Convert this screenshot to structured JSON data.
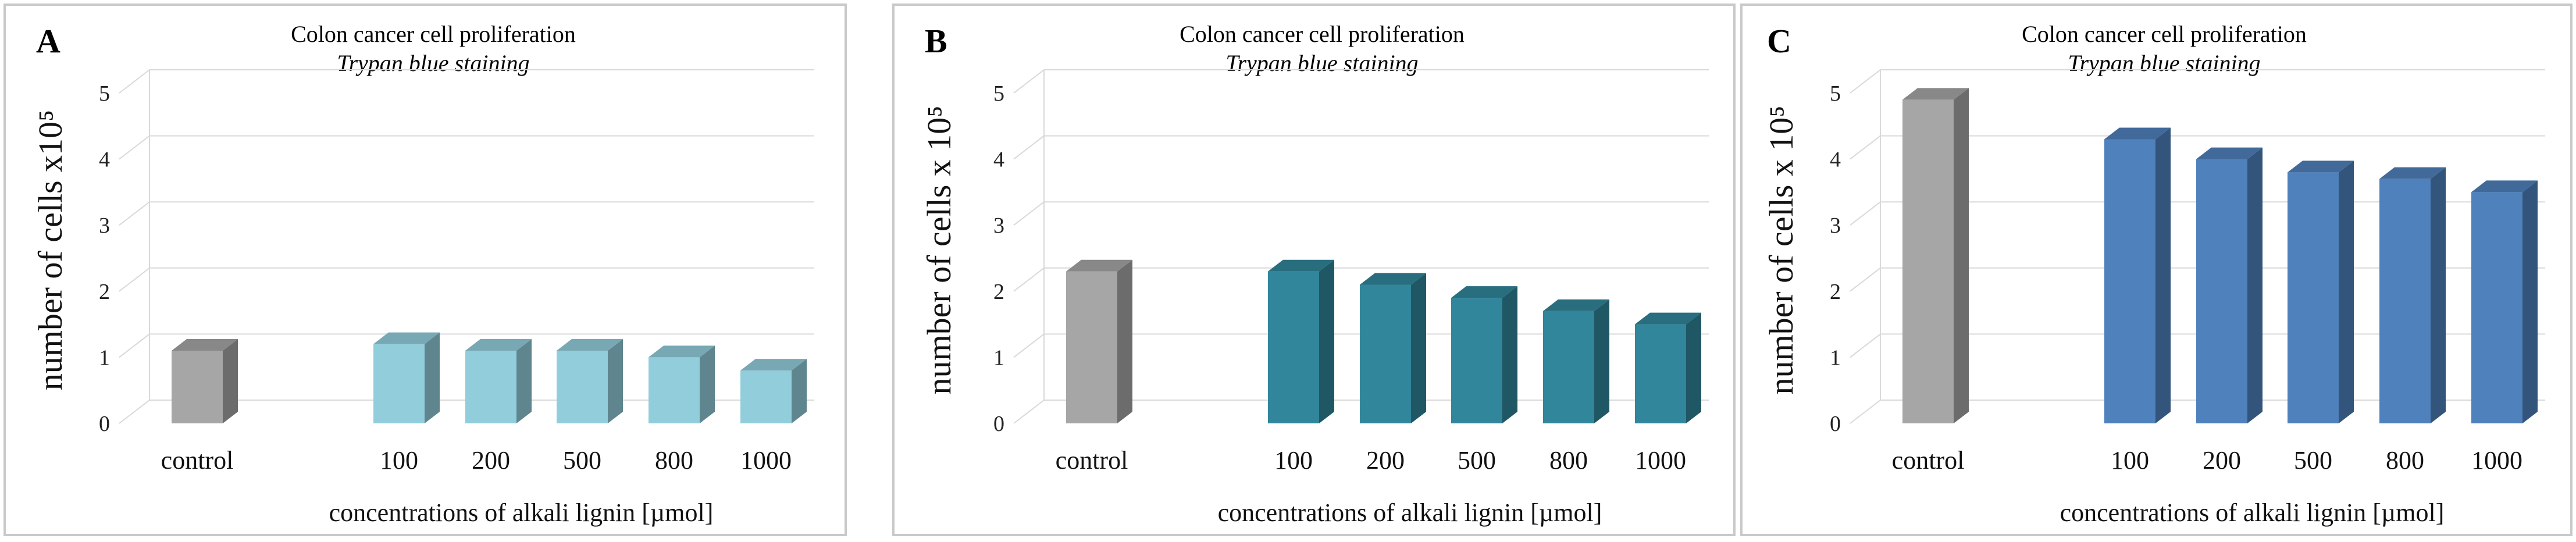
{
  "chart_data": [
    {
      "type": "bar",
      "panel_label": "A",
      "title": "Colon cancer cell proliferation",
      "subtitle": "Trypan blue staining",
      "ylabel": "number of cells x10⁵",
      "xlabel": "concentrations of alkali lignin [µmol]",
      "categories": [
        "control",
        "100",
        "200",
        "500",
        "800",
        "1000"
      ],
      "values": [
        1.1,
        1.2,
        1.1,
        1.1,
        1.0,
        0.8
      ],
      "ylim": [
        0,
        5
      ],
      "yticks": [
        "0",
        "1",
        "2",
        "3",
        "4",
        "5"
      ],
      "grid": true,
      "colors": {
        "control": "#a6a6a6",
        "bars": "#92cddc"
      }
    },
    {
      "type": "bar",
      "panel_label": "B",
      "title": "Colon cancer cell proliferation",
      "subtitle": "Trypan blue staining",
      "ylabel": "number of cells x 10⁵",
      "xlabel": "concentrations of alkali lignin [µmol]",
      "categories": [
        "control",
        "100",
        "200",
        "500",
        "800",
        "1000"
      ],
      "values": [
        2.3,
        2.3,
        2.1,
        1.9,
        1.7,
        1.5
      ],
      "ylim": [
        0,
        5
      ],
      "yticks": [
        "0",
        "1",
        "2",
        "3",
        "4",
        "5"
      ],
      "grid": true,
      "colors": {
        "control": "#a6a6a6",
        "bars": "#31869b"
      }
    },
    {
      "type": "bar",
      "panel_label": "C",
      "title": "Colon cancer cell proliferation",
      "subtitle": "Trypan blue staining",
      "ylabel": "number of cells x 10⁵",
      "xlabel": "concentrations of alkali lignin [µmol]",
      "categories": [
        "control",
        "100",
        "200",
        "500",
        "800",
        "1000"
      ],
      "values": [
        4.9,
        4.3,
        4.0,
        3.8,
        3.7,
        3.5
      ],
      "ylim": [
        0,
        5
      ],
      "yticks": [
        "0",
        "1",
        "2",
        "3",
        "4",
        "5"
      ],
      "grid": true,
      "colors": {
        "control": "#a6a6a6",
        "bars": "#4f81bd"
      }
    }
  ]
}
